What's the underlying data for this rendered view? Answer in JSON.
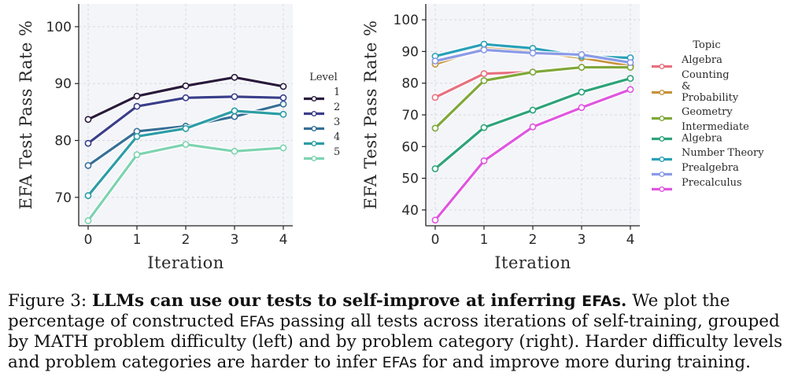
{
  "chart_data": [
    {
      "type": "line",
      "xlabel": "Iteration",
      "ylabel": "EFA Test Pass Rate %",
      "x": [
        0,
        1,
        2,
        3,
        4
      ],
      "ylim": [
        65,
        104
      ],
      "yticks": [
        70,
        80,
        90,
        100
      ],
      "grid": true,
      "legend_title": "Level",
      "legend_position": "right",
      "series": [
        {
          "name": "1",
          "color": "#2a1b3d",
          "values": [
            83.7,
            87.8,
            89.6,
            91.1,
            89.5
          ]
        },
        {
          "name": "2",
          "color": "#3a3f8a",
          "values": [
            79.5,
            86.0,
            87.5,
            87.7,
            87.5
          ]
        },
        {
          "name": "3",
          "color": "#366f96",
          "values": [
            75.6,
            81.6,
            82.5,
            84.2,
            86.4
          ]
        },
        {
          "name": "4",
          "color": "#2c9da6",
          "values": [
            70.3,
            80.7,
            82.1,
            85.2,
            84.6
          ]
        },
        {
          "name": "5",
          "color": "#7dd3b0",
          "values": [
            65.9,
            77.5,
            79.3,
            78.1,
            78.7
          ]
        }
      ]
    },
    {
      "type": "line",
      "xlabel": "Iteration",
      "ylabel": "EFA Test Pass Rate %",
      "x": [
        0,
        1,
        2,
        3,
        4
      ],
      "ylim": [
        35,
        105
      ],
      "yticks": [
        40,
        50,
        60,
        70,
        80,
        90,
        100
      ],
      "grid": true,
      "legend_title": "Topic",
      "legend_position": "right",
      "series": [
        {
          "name": "Algebra",
          "color": "#e8707f",
          "values": [
            75.5,
            83.0,
            83.5,
            85.0,
            85.5
          ]
        },
        {
          "name": "Counting & Probability",
          "color": "#c8923a",
          "values": [
            86.0,
            91.0,
            90.0,
            88.0,
            85.5
          ]
        },
        {
          "name": "Geometry",
          "color": "#7fa83a",
          "values": [
            65.8,
            80.8,
            83.5,
            85.0,
            85.0
          ]
        },
        {
          "name": "Intermediate Algebra",
          "color": "#2ea37a",
          "values": [
            53.0,
            66.0,
            71.5,
            77.2,
            81.5
          ]
        },
        {
          "name": "Number Theory",
          "color": "#2aa0b8",
          "values": [
            88.5,
            92.3,
            91.0,
            88.5,
            88.0
          ]
        },
        {
          "name": "Prealgebra",
          "color": "#8a9ae8",
          "values": [
            87.0,
            90.5,
            89.5,
            89.0,
            86.5
          ]
        },
        {
          "name": "Precalculus",
          "color": "#e055e0",
          "values": [
            36.8,
            55.5,
            66.2,
            72.3,
            78.0
          ]
        }
      ]
    }
  ],
  "legend_labels": {
    "topic_counting": [
      "Counting",
      "&",
      "Probability"
    ],
    "topic_intermediate": [
      "Intermediate",
      "Algebra"
    ]
  },
  "caption": {
    "prefix": "Figure 3: ",
    "bold_title": "LLMs can use our tests to self-improve at inferring ",
    "bold_title_mono": "EFAs",
    "bold_title_end": ".",
    "part1": " We plot the percentage of constructed ",
    "mono1": "EFAs",
    "part2": " passing all tests across iterations of self-training, grouped by MATH problem difficulty (left) and by problem category (right).  Harder difficulty levels and problem categories are harder to infer ",
    "mono2": "EFAs",
    "part3": " for and improve more during training."
  }
}
